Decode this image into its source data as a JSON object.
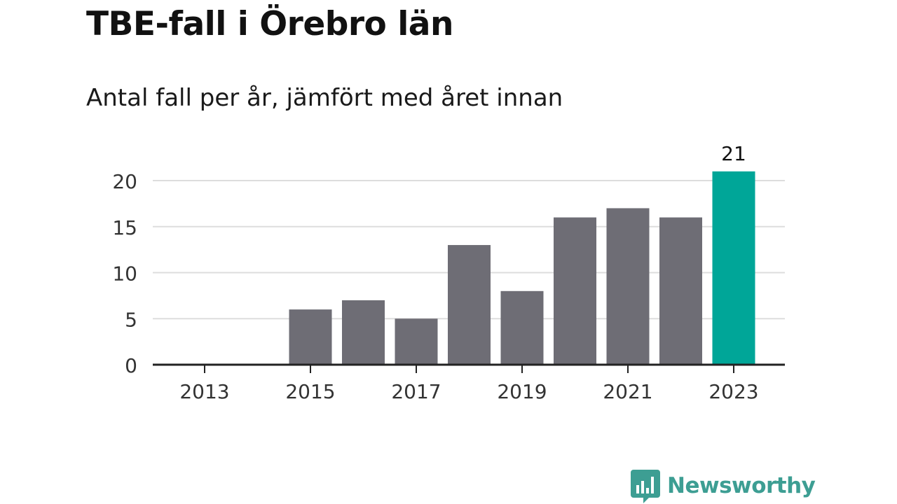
{
  "header": {
    "title": "TBE-fall i Örebro län",
    "subtitle": "Antal fall per år, jämfört med året innan"
  },
  "brand": {
    "name": "Newsworthy",
    "icon": "bar-chart-speech-bubble-icon",
    "color": "#3d9e93"
  },
  "chart_data": {
    "type": "bar",
    "title": "TBE-fall i Örebro län",
    "subtitle": "Antal fall per år, jämfört med året innan",
    "xlabel": "",
    "ylabel": "",
    "categories": [
      "2013",
      "2014",
      "2015",
      "2016",
      "2017",
      "2018",
      "2019",
      "2020",
      "2021",
      "2022",
      "2023"
    ],
    "values": [
      0,
      0,
      6,
      7,
      5,
      13,
      8,
      16,
      17,
      16,
      21
    ],
    "ylim": [
      0,
      21
    ],
    "yticks": [
      0,
      5,
      10,
      15,
      20
    ],
    "xticks": [
      "2013",
      "2015",
      "2017",
      "2019",
      "2021",
      "2023"
    ],
    "grid": true,
    "highlight": {
      "category": "2023",
      "label": "21"
    },
    "colors": {
      "bar": "#6e6d75",
      "highlight": "#00a698",
      "grid": "#dddddd",
      "axis": "#222222"
    }
  }
}
